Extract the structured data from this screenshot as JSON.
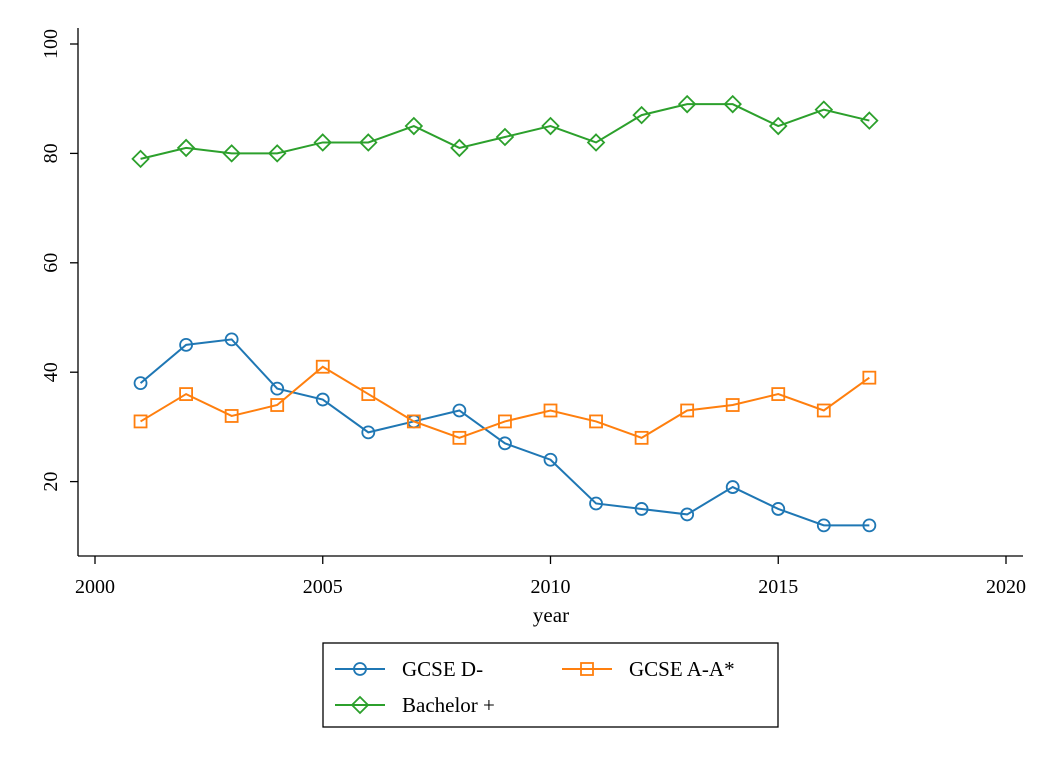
{
  "chart_data": {
    "type": "line",
    "title": "",
    "xlabel": "year",
    "ylabel": "",
    "xlim": [
      2000,
      2020
    ],
    "ylim": [
      0,
      100
    ],
    "xticks": [
      2000,
      2005,
      2010,
      2015,
      2020
    ],
    "yticks": [
      20,
      40,
      60,
      80,
      100
    ],
    "grid": false,
    "legend_position": "bottom",
    "x": [
      2001,
      2002,
      2003,
      2004,
      2005,
      2006,
      2007,
      2008,
      2009,
      2010,
      2011,
      2012,
      2013,
      2014,
      2015,
      2016,
      2017
    ],
    "series": [
      {
        "name": "GCSE D-",
        "color": "#1f77b4",
        "marker": "circle",
        "values": [
          38,
          45,
          46,
          37,
          35,
          29,
          31,
          33,
          27,
          24,
          16,
          15,
          14,
          19,
          15,
          12,
          12
        ]
      },
      {
        "name": "GCSE A-A*",
        "color": "#ff7f0e",
        "marker": "square",
        "values": [
          31,
          36,
          32,
          34,
          41,
          36,
          31,
          28,
          31,
          33,
          31,
          28,
          33,
          34,
          36,
          33,
          39
        ]
      },
      {
        "name": "Bachelor +",
        "color": "#2ca02c",
        "marker": "diamond",
        "values": [
          79,
          81,
          80,
          80,
          82,
          82,
          85,
          81,
          83,
          85,
          82,
          87,
          89,
          89,
          85,
          88,
          86
        ]
      }
    ]
  }
}
